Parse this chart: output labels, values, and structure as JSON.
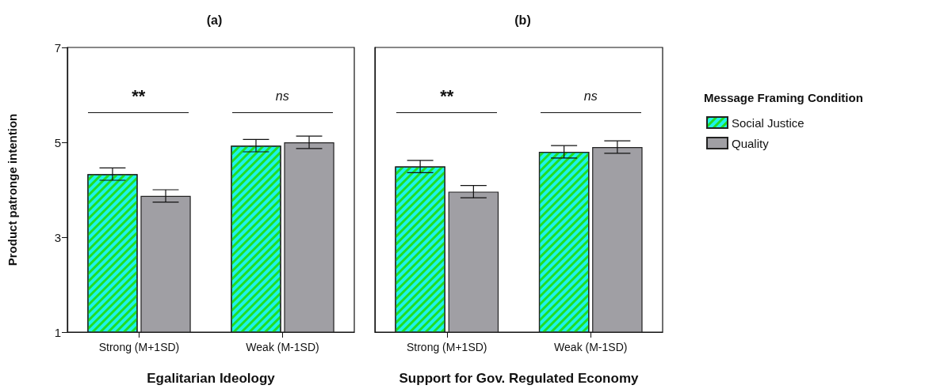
{
  "chart_data": [
    {
      "type": "bar",
      "title": "(a)",
      "xlabel": "Egalitarian Ideology",
      "ylabel": "Product patronge intention",
      "categories": [
        "Strong (M+1SD)",
        "Weak (M-1SD)"
      ],
      "series": [
        {
          "color": "#1ef2ea",
          "values": [
            4.33,
            4.93
          ],
          "errors": [
            0.13,
            0.13
          ]
        },
        {
          "color": "#a09fa4",
          "values": [
            3.87,
            5.0
          ],
          "errors": [
            0.13,
            0.13
          ]
        }
      ],
      "ylim": [
        1,
        7
      ],
      "yticks": [
        1,
        3,
        5,
        7
      ],
      "grid": false,
      "legend": false,
      "annotations": [
        "**",
        "ns"
      ]
    },
    {
      "type": "bar",
      "title": "(b)",
      "xlabel": "Support for Gov. Regulated Economy",
      "categories": [
        "Strong (M+1SD)",
        "Weak (M-1SD)"
      ],
      "series": [
        {
          "name": "Social Justice",
          "color": "#1ef2ea",
          "values": [
            4.49,
            4.8
          ],
          "errors": [
            0.13,
            0.13
          ]
        },
        {
          "name": "Quality",
          "color": "#a09fa4",
          "values": [
            3.96,
            4.9
          ],
          "errors": [
            0.13,
            0.13
          ]
        }
      ],
      "ylim": [
        1,
        7
      ],
      "yticks": [
        1,
        3,
        5,
        7
      ],
      "tick_labels": "x",
      "grid": false,
      "legend": "right",
      "legend_title": "Message Framing Condition",
      "annotations": [
        "**",
        "ns"
      ]
    }
  ]
}
